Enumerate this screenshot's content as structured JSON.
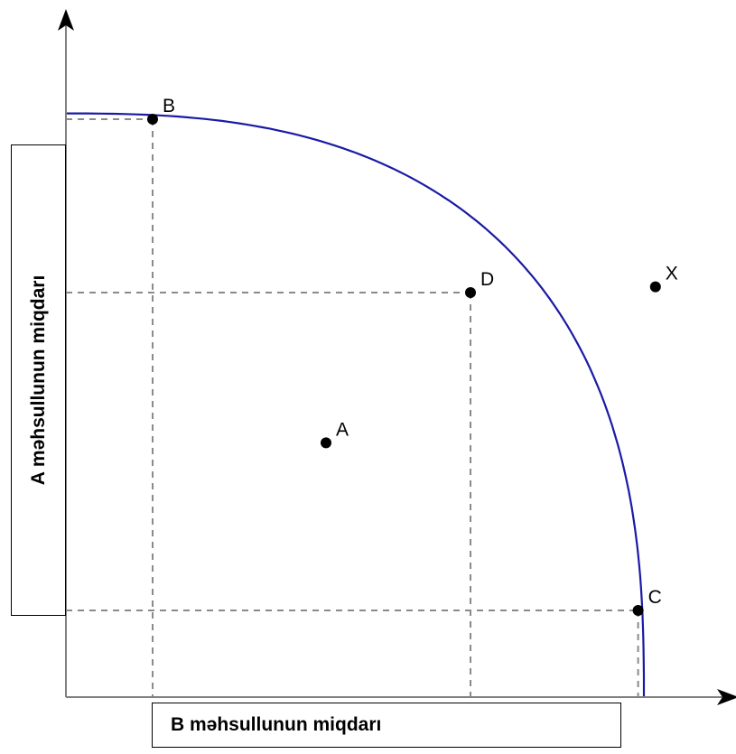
{
  "chart_data": {
    "type": "scatter",
    "title": "",
    "xlabel": "B məhsullunun miqdarı",
    "ylabel": "A məhsullunun miqdarı",
    "curve": {
      "name": "",
      "color": "#1a1aa6"
    },
    "points": [
      {
        "label": "B",
        "x": 1.5,
        "y": 10.0,
        "on_curve": true,
        "guides": true
      },
      {
        "label": "D",
        "x": 7.0,
        "y": 7.0,
        "on_curve": true,
        "guides": true
      },
      {
        "label": "C",
        "x": 9.9,
        "y": 1.5,
        "on_curve": true,
        "guides": true
      },
      {
        "label": "A",
        "x": 4.5,
        "y": 4.4,
        "on_curve": false,
        "guides": false
      },
      {
        "label": "X",
        "x": 10.2,
        "y": 7.1,
        "on_curve": false,
        "guides": false
      }
    ],
    "grid": false
  }
}
